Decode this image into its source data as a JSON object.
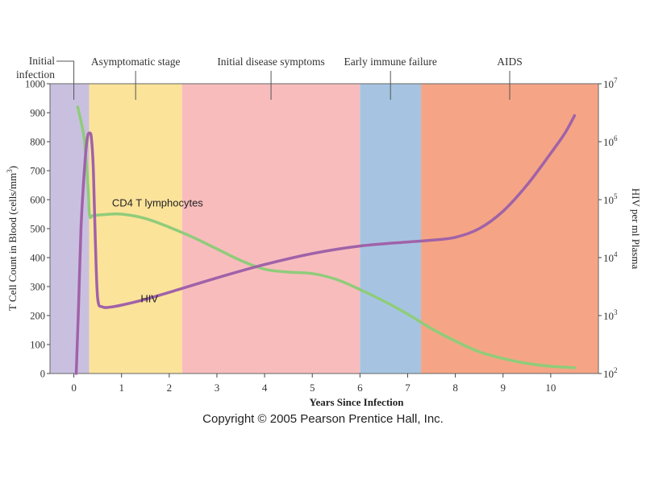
{
  "chart_data": {
    "type": "line",
    "xlabel": "Years Since Infection",
    "ylabel_left_main": "T Cell Count in Blood (cells/mm",
    "ylabel_left_sup": "3",
    "ylabel_left_end": ")",
    "ylabel_right": "HIV per ml Plasma",
    "xlim": [
      -0.5,
      11
    ],
    "ylim_left": [
      0,
      1000
    ],
    "ylim_right_log10": [
      2,
      7
    ],
    "y_right_scale": "log",
    "x_ticks": [
      0,
      1,
      2,
      3,
      4,
      5,
      6,
      7,
      8,
      9,
      10
    ],
    "y_left_ticks": [
      0,
      100,
      200,
      300,
      400,
      500,
      600,
      700,
      800,
      900,
      1000
    ],
    "y_right_ticks": [
      {
        "base": "10",
        "exp": "2",
        "log10": 2
      },
      {
        "base": "10",
        "exp": "3",
        "log10": 3
      },
      {
        "base": "10",
        "exp": "4",
        "log10": 4
      },
      {
        "base": "10",
        "exp": "5",
        "log10": 5
      },
      {
        "base": "10",
        "exp": "6",
        "log10": 6
      },
      {
        "base": "10",
        "exp": "7",
        "log10": 7
      }
    ],
    "stages": [
      {
        "name": "initial-infection",
        "label": [
          "Initial",
          "infection"
        ],
        "x0": -0.5,
        "x1": 0.32,
        "color": "#c9c0e0"
      },
      {
        "name": "asymptomatic-stage",
        "label": [
          "Asymptomatic stage"
        ],
        "x0": 0.32,
        "x1": 2.27,
        "color": "#fbe39a"
      },
      {
        "name": "initial-disease-symptoms",
        "label": [
          "Initial disease symptoms"
        ],
        "x0": 2.27,
        "x1": 6.0,
        "color": "#f8bcbd"
      },
      {
        "name": "early-immune-failure",
        "label": [
          "Early immune failure"
        ],
        "x0": 6.0,
        "x1": 7.28,
        "color": "#a6c4e2"
      },
      {
        "name": "aids",
        "label": [
          "AIDS"
        ],
        "x0": 7.28,
        "x1": 11,
        "color": "#f5a585"
      }
    ],
    "series": [
      {
        "name": "CD4 T lymphocytes",
        "axis": "left",
        "color": "#8fcc7a",
        "x": [
          0.08,
          0.2,
          0.25,
          0.3,
          0.33,
          0.4,
          0.6,
          1.0,
          1.5,
          2.0,
          2.5,
          3.0,
          3.5,
          4.0,
          4.5,
          5.0,
          5.5,
          6.0,
          6.5,
          7.0,
          7.5,
          8.0,
          8.5,
          9.0,
          9.5,
          10.0,
          10.5
        ],
        "y": [
          920,
          830,
          750,
          640,
          545,
          545,
          548,
          550,
          535,
          505,
          470,
          430,
          390,
          360,
          350,
          345,
          325,
          290,
          250,
          205,
          155,
          112,
          75,
          52,
          35,
          25,
          20
        ]
      },
      {
        "name": "HIV",
        "axis": "right_log10",
        "color": "#a062a8",
        "x": [
          0.05,
          0.1,
          0.15,
          0.22,
          0.28,
          0.33,
          0.37,
          0.41,
          0.45,
          0.5,
          0.6,
          0.8,
          1.0,
          1.5,
          2.0,
          3.0,
          4.0,
          5.0,
          6.0,
          7.0,
          7.5,
          8.0,
          8.5,
          9.0,
          9.5,
          10.0,
          10.3,
          10.5
        ],
        "y": [
          1.9,
          3.2,
          4.5,
          5.5,
          6.05,
          6.15,
          6.05,
          5.5,
          4.3,
          3.3,
          3.15,
          3.15,
          3.18,
          3.28,
          3.4,
          3.65,
          3.88,
          4.07,
          4.2,
          4.27,
          4.3,
          4.35,
          4.5,
          4.8,
          5.25,
          5.8,
          6.15,
          6.45
        ]
      }
    ],
    "annotations": [
      {
        "name": "cd4-annotation",
        "text": "CD4 T lymphocytes",
        "x": 0.8,
        "y": 590,
        "axis": "left"
      },
      {
        "name": "hiv-annotation",
        "text": "HIV",
        "x": 1.4,
        "y": 260,
        "axis": "left"
      }
    ]
  },
  "copyright": "Copyright © 2005 Pearson Prentice Hall, Inc."
}
